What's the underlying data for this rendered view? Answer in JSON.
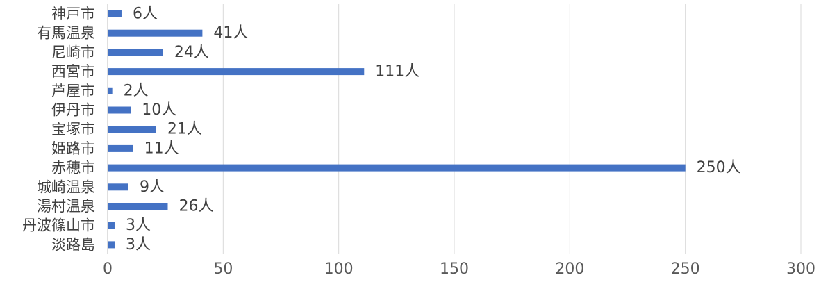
{
  "chart_data": {
    "type": "bar",
    "orientation": "horizontal",
    "categories": [
      "神戸市",
      "有馬温泉",
      "尼崎市",
      "西宮市",
      "芦屋市",
      "伊丹市",
      "宝塚市",
      "姫路市",
      "赤穂市",
      "城崎温泉",
      "湯村温泉",
      "丹波篠山市",
      "淡路島"
    ],
    "values": [
      6,
      41,
      24,
      111,
      2,
      10,
      21,
      11,
      250,
      9,
      26,
      3,
      3
    ],
    "value_labels": [
      "6人",
      "41人",
      "24人",
      "111人",
      "2人",
      "10人",
      "21人",
      "11人",
      "250人",
      "9人",
      "26人",
      "3人",
      "3人"
    ],
    "xlim": [
      0,
      300
    ],
    "x_ticks": [
      "0",
      "50",
      "100",
      "150",
      "200",
      "250",
      "300"
    ],
    "grid": "vertical",
    "bar_color": "#4472C4",
    "grid_color": "#D9D9D9",
    "axis_color": "#BFBFBF"
  }
}
